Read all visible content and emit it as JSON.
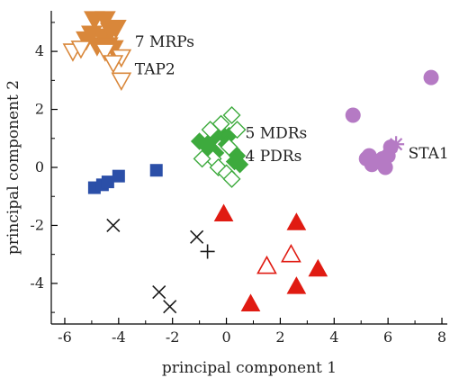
{
  "chart_data": {
    "type": "scatter",
    "xlabel": "principal component 1",
    "ylabel": "principal component 2",
    "xlim": [
      -6.5,
      8.2
    ],
    "ylim": [
      -5.4,
      5.4
    ],
    "xticks": [
      -6,
      -4,
      -2,
      0,
      2,
      4,
      6,
      8
    ],
    "yticks": [
      -4,
      -2,
      0,
      2,
      4
    ],
    "grid": false,
    "legend": "none",
    "series": [
      {
        "marker": "triangle-down-filled",
        "color": "#d9873a",
        "points": [
          [
            -4.9,
            5.1
          ],
          [
            -4.5,
            5.1
          ],
          [
            -5.0,
            4.6
          ],
          [
            -4.6,
            4.5
          ],
          [
            -4.3,
            4.7
          ],
          [
            -4.1,
            4.8
          ],
          [
            -4.8,
            4.2
          ],
          [
            -4.4,
            4.2
          ],
          [
            -4.2,
            4.1
          ],
          [
            -5.2,
            4.4
          ]
        ]
      },
      {
        "marker": "triangle-down-open",
        "color": "#d9873a",
        "points": [
          [
            -5.7,
            4.0
          ],
          [
            -4.5,
            4.0
          ],
          [
            -3.9,
            3.8
          ],
          [
            -4.2,
            3.6
          ],
          [
            -3.9,
            3.0
          ],
          [
            -5.4,
            4.1
          ]
        ]
      },
      {
        "marker": "diamond-filled",
        "color": "#3daa3d",
        "points": [
          [
            -1.0,
            0.9
          ],
          [
            -0.5,
            1.0
          ],
          [
            -0.2,
            1.2
          ],
          [
            0.1,
            1.1
          ],
          [
            0.2,
            0.6
          ],
          [
            0.4,
            0.4
          ],
          [
            -0.4,
            0.5
          ],
          [
            0.0,
            0.8
          ],
          [
            -0.7,
            0.7
          ],
          [
            0.3,
            0.2
          ],
          [
            0.5,
            0.1
          ]
        ]
      },
      {
        "marker": "diamond-open",
        "color": "#3daa3d",
        "points": [
          [
            0.2,
            1.8
          ],
          [
            -0.2,
            1.5
          ],
          [
            0.4,
            1.3
          ],
          [
            -0.5,
            0.3
          ],
          [
            -0.9,
            0.3
          ],
          [
            -0.3,
            0.0
          ],
          [
            0.0,
            -0.2
          ],
          [
            0.2,
            -0.4
          ],
          [
            0.1,
            0.7
          ],
          [
            -0.6,
            1.3
          ]
        ]
      },
      {
        "marker": "square-filled",
        "color": "#2b4fa8",
        "points": [
          [
            -4.9,
            -0.7
          ],
          [
            -4.6,
            -0.6
          ],
          [
            -4.4,
            -0.5
          ],
          [
            -4.0,
            -0.3
          ],
          [
            -2.6,
            -0.1
          ]
        ]
      },
      {
        "marker": "x",
        "color": "#1a1a1a",
        "points": [
          [
            -4.2,
            -2.0
          ],
          [
            -1.1,
            -2.4
          ],
          [
            -2.5,
            -4.3
          ],
          [
            -2.1,
            -4.8
          ]
        ]
      },
      {
        "marker": "plus",
        "color": "#1a1a1a",
        "points": [
          [
            -0.7,
            -2.9
          ]
        ]
      },
      {
        "marker": "triangle-up-filled",
        "color": "#e01b12",
        "points": [
          [
            -0.1,
            -1.6
          ],
          [
            2.6,
            -1.9
          ],
          [
            3.4,
            -3.5
          ],
          [
            2.6,
            -4.1
          ],
          [
            0.9,
            -4.7
          ]
        ]
      },
      {
        "marker": "triangle-up-open",
        "color": "#e01b12",
        "points": [
          [
            1.5,
            -3.4
          ],
          [
            2.4,
            -3.0
          ]
        ]
      },
      {
        "marker": "circle-filled",
        "color": "#b57ac4",
        "points": [
          [
            7.6,
            3.1
          ],
          [
            4.7,
            1.8
          ],
          [
            5.2,
            0.3
          ],
          [
            5.4,
            0.1
          ],
          [
            5.6,
            0.2
          ],
          [
            5.8,
            0.3
          ],
          [
            6.0,
            0.4
          ],
          [
            5.9,
            0.0
          ],
          [
            6.1,
            0.7
          ],
          [
            5.3,
            0.4
          ]
        ]
      },
      {
        "marker": "asterisk",
        "color": "#b57ac4",
        "points": [
          [
            6.3,
            0.8
          ]
        ]
      }
    ],
    "annotations": [
      {
        "text": "7 MRPs",
        "x": -3.4,
        "y": 4.35
      },
      {
        "text": "TAP2",
        "x": -3.4,
        "y": 3.4
      },
      {
        "text": "5 MDRs",
        "x": 0.7,
        "y": 1.2
      },
      {
        "text": "4 PDRs",
        "x": 0.7,
        "y": 0.4
      },
      {
        "text": "STA1",
        "x": 6.75,
        "y": 0.5
      }
    ]
  }
}
